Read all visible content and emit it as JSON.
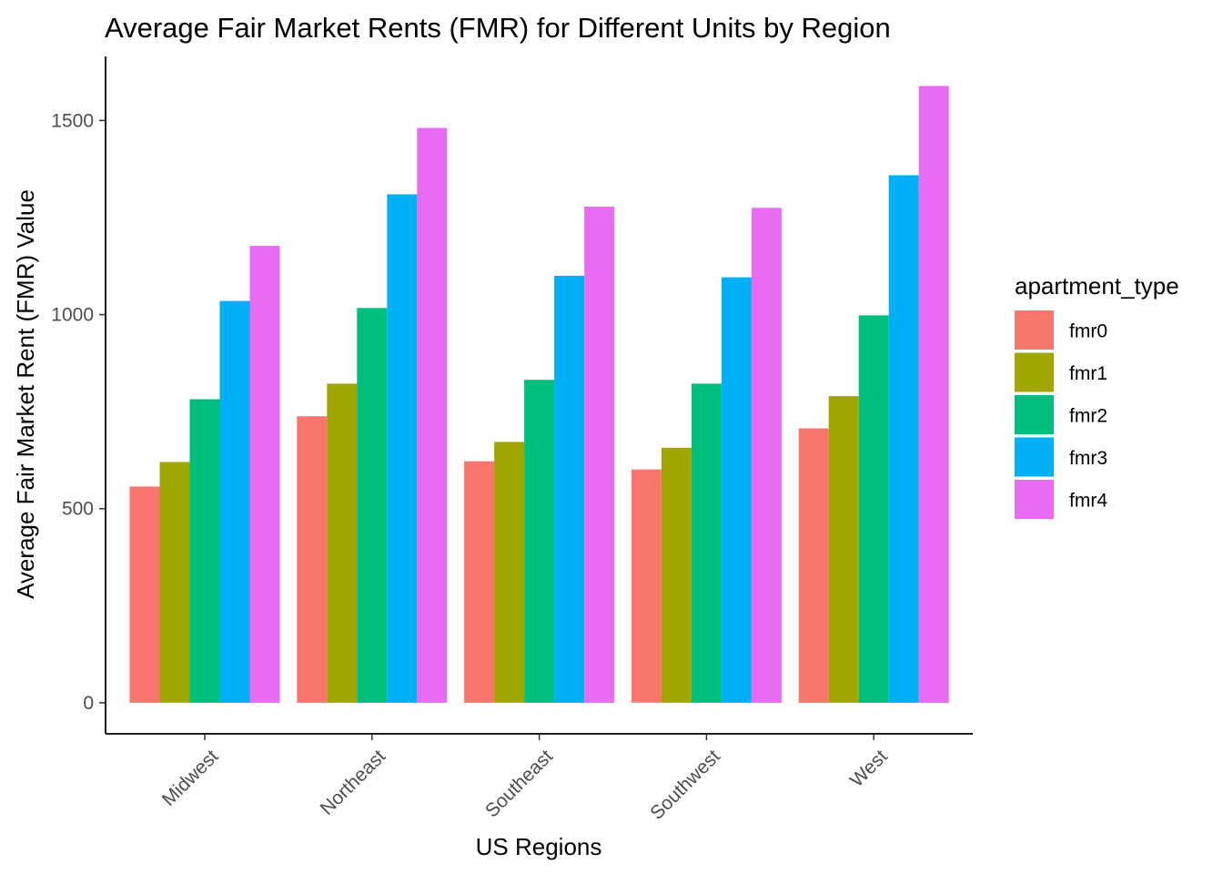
{
  "chart_data": {
    "type": "bar",
    "title": "Average Fair Market Rents (FMR) for Different Units by Region",
    "xlabel": "US Regions",
    "ylabel": "Average Fair Market Rent (FMR) Value",
    "categories": [
      "Midwest",
      "Northeast",
      "Southeast",
      "Southwest",
      "West"
    ],
    "ylim": [
      -80,
      1665
    ],
    "yticks": [
      0,
      500,
      1000,
      1500
    ],
    "grid": false,
    "legend": {
      "title": "apartment_type",
      "placement": "right"
    },
    "series": [
      {
        "name": "fmr0",
        "color": "#F8766D",
        "values": [
          557,
          738,
          622,
          601,
          707
        ]
      },
      {
        "name": "fmr1",
        "color": "#A3A500",
        "values": [
          620,
          822,
          672,
          657,
          790
        ]
      },
      {
        "name": "fmr2",
        "color": "#00BF7D",
        "values": [
          782,
          1017,
          832,
          822,
          998
        ]
      },
      {
        "name": "fmr3",
        "color": "#00B0F6",
        "values": [
          1035,
          1310,
          1100,
          1096,
          1359
        ]
      },
      {
        "name": "fmr4",
        "color": "#E76BF3",
        "values": [
          1177,
          1481,
          1278,
          1275,
          1589
        ]
      }
    ]
  }
}
